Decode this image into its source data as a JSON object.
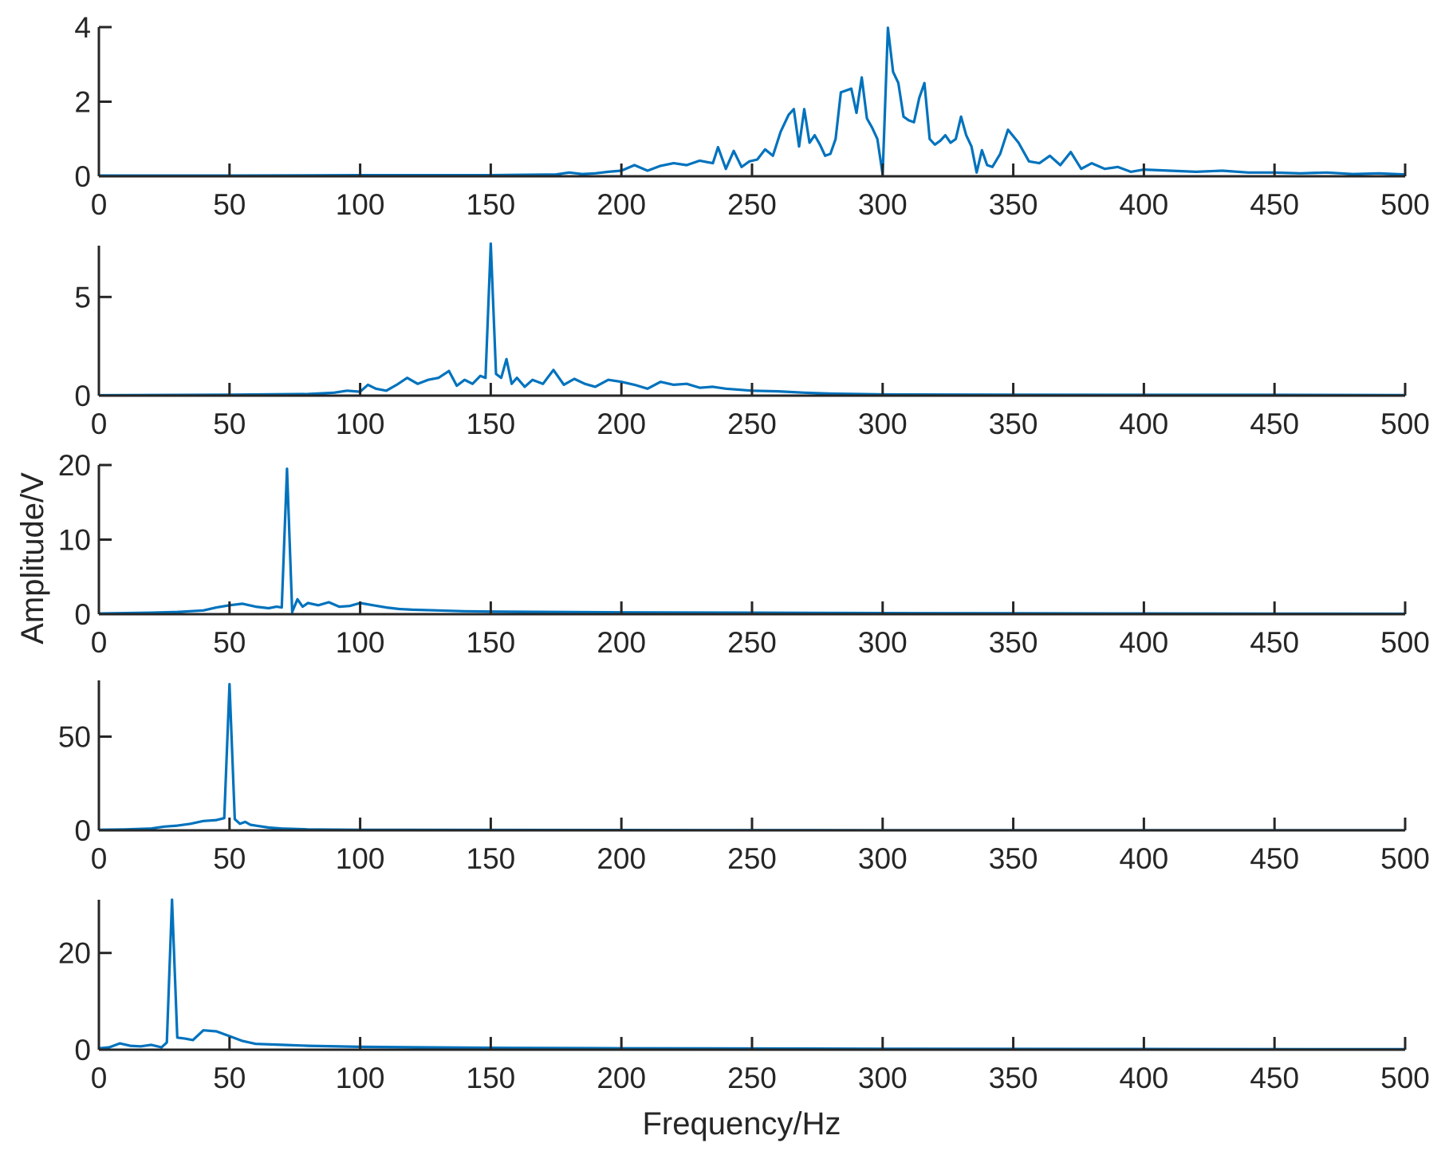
{
  "figure": {
    "xlabel": "Frequency/Hz",
    "ylabel": "Amplitude/V",
    "line_color": "#0072BD",
    "axis_color": "#262626"
  },
  "chart_data": [
    {
      "type": "line",
      "panel": 1,
      "xlim": [
        0,
        500
      ],
      "ylim": [
        0,
        4
      ],
      "xticks": [
        0,
        50,
        100,
        150,
        200,
        250,
        300,
        350,
        400,
        450,
        500
      ],
      "yticks": [
        0,
        2,
        4
      ],
      "x": [
        0,
        50,
        100,
        150,
        175,
        180,
        185,
        190,
        195,
        200,
        205,
        210,
        215,
        220,
        225,
        230,
        235,
        237,
        240,
        243,
        246,
        249,
        252,
        255,
        258,
        261,
        264,
        266,
        268,
        270,
        272,
        274,
        276,
        278,
        280,
        282,
        284,
        286,
        288,
        290,
        292,
        294,
        296,
        298,
        300,
        302,
        304,
        306,
        308,
        310,
        312,
        314,
        316,
        318,
        320,
        322,
        324,
        326,
        328,
        330,
        332,
        334,
        336,
        338,
        340,
        342,
        345,
        348,
        352,
        356,
        360,
        364,
        368,
        372,
        376,
        380,
        385,
        390,
        395,
        400,
        410,
        420,
        430,
        440,
        450,
        460,
        470,
        480,
        490,
        500
      ],
      "y": [
        0.02,
        0.02,
        0.03,
        0.03,
        0.05,
        0.1,
        0.06,
        0.08,
        0.12,
        0.15,
        0.3,
        0.15,
        0.28,
        0.35,
        0.3,
        0.42,
        0.35,
        0.78,
        0.2,
        0.68,
        0.25,
        0.4,
        0.45,
        0.72,
        0.55,
        1.2,
        1.65,
        1.8,
        0.8,
        1.8,
        0.9,
        1.1,
        0.85,
        0.55,
        0.6,
        1.0,
        2.25,
        2.3,
        2.35,
        1.7,
        2.65,
        1.55,
        1.3,
        1.0,
        0.05,
        3.98,
        2.8,
        2.5,
        1.6,
        1.5,
        1.45,
        2.1,
        2.5,
        1.0,
        0.85,
        0.95,
        1.1,
        0.9,
        1.0,
        1.6,
        1.1,
        0.8,
        0.1,
        0.7,
        0.3,
        0.25,
        0.6,
        1.25,
        0.9,
        0.4,
        0.35,
        0.55,
        0.3,
        0.65,
        0.2,
        0.35,
        0.2,
        0.25,
        0.12,
        0.18,
        0.15,
        0.12,
        0.15,
        0.1,
        0.1,
        0.08,
        0.1,
        0.06,
        0.08,
        0.05
      ]
    },
    {
      "type": "line",
      "panel": 2,
      "xlim": [
        0,
        500
      ],
      "ylim": [
        0,
        7.6
      ],
      "xticks": [
        0,
        50,
        100,
        150,
        200,
        250,
        300,
        350,
        400,
        450,
        500
      ],
      "yticks": [
        0,
        5
      ],
      "x": [
        0,
        50,
        80,
        90,
        95,
        100,
        103,
        106,
        110,
        114,
        118,
        122,
        126,
        130,
        134,
        137,
        140,
        143,
        146,
        148,
        150,
        152,
        154,
        156,
        158,
        160,
        163,
        166,
        170,
        174,
        178,
        182,
        186,
        190,
        195,
        200,
        205,
        210,
        215,
        220,
        225,
        230,
        235,
        240,
        250,
        260,
        270,
        280,
        300,
        350,
        400,
        450,
        500
      ],
      "y": [
        0.02,
        0.05,
        0.08,
        0.15,
        0.25,
        0.2,
        0.55,
        0.35,
        0.25,
        0.55,
        0.9,
        0.6,
        0.8,
        0.9,
        1.25,
        0.5,
        0.8,
        0.6,
        1.0,
        0.9,
        7.7,
        1.1,
        0.9,
        1.85,
        0.6,
        0.9,
        0.45,
        0.8,
        0.6,
        1.3,
        0.55,
        0.85,
        0.6,
        0.45,
        0.8,
        0.7,
        0.55,
        0.35,
        0.7,
        0.55,
        0.6,
        0.4,
        0.45,
        0.35,
        0.25,
        0.22,
        0.15,
        0.1,
        0.06,
        0.05,
        0.04,
        0.04,
        0.03
      ]
    },
    {
      "type": "line",
      "panel": 3,
      "xlim": [
        0,
        500
      ],
      "ylim": [
        0,
        20
      ],
      "xticks": [
        0,
        50,
        100,
        150,
        200,
        250,
        300,
        350,
        400,
        450,
        500
      ],
      "yticks": [
        0,
        10,
        20
      ],
      "x": [
        0,
        20,
        30,
        40,
        45,
        50,
        55,
        60,
        65,
        68,
        70,
        72,
        74,
        76,
        78,
        80,
        84,
        88,
        92,
        96,
        100,
        105,
        110,
        115,
        120,
        130,
        140,
        150,
        200,
        250,
        300,
        350,
        400,
        450,
        500
      ],
      "y": [
        0.1,
        0.2,
        0.3,
        0.5,
        0.9,
        1.2,
        1.4,
        1.0,
        0.8,
        1.0,
        0.9,
        19.5,
        0.3,
        2.0,
        1.0,
        1.5,
        1.2,
        1.6,
        1.0,
        1.1,
        1.5,
        1.2,
        0.9,
        0.7,
        0.6,
        0.5,
        0.4,
        0.35,
        0.25,
        0.2,
        0.15,
        0.12,
        0.1,
        0.08,
        0.05
      ]
    },
    {
      "type": "line",
      "panel": 4,
      "xlim": [
        0,
        500
      ],
      "ylim": [
        0,
        80
      ],
      "xticks": [
        0,
        50,
        100,
        150,
        200,
        250,
        300,
        350,
        400,
        450,
        500
      ],
      "yticks": [
        0,
        50
      ],
      "x": [
        0,
        10,
        20,
        25,
        30,
        35,
        40,
        45,
        48,
        50,
        52,
        54,
        56,
        58,
        60,
        65,
        70,
        80,
        100,
        150,
        200,
        300,
        400,
        500
      ],
      "y": [
        0.3,
        0.5,
        1.0,
        2.0,
        2.5,
        3.5,
        5.0,
        5.5,
        6.5,
        78.0,
        6.0,
        3.5,
        4.5,
        3.0,
        2.5,
        1.5,
        1.0,
        0.5,
        0.3,
        0.2,
        0.15,
        0.1,
        0.08,
        0.05
      ]
    },
    {
      "type": "line",
      "panel": 5,
      "xlim": [
        0,
        500
      ],
      "ylim": [
        0,
        31
      ],
      "xticks": [
        0,
        50,
        100,
        150,
        200,
        250,
        300,
        350,
        400,
        450,
        500
      ],
      "yticks": [
        0,
        20
      ],
      "x": [
        0,
        4,
        8,
        12,
        16,
        20,
        24,
        26,
        28,
        30,
        33,
        36,
        40,
        45,
        50,
        55,
        60,
        70,
        80,
        100,
        150,
        200,
        300,
        400,
        500
      ],
      "y": [
        0.3,
        0.5,
        1.3,
        0.8,
        0.7,
        1.0,
        0.5,
        1.5,
        31.0,
        2.5,
        2.3,
        2.0,
        4.0,
        3.8,
        2.8,
        1.8,
        1.2,
        1.0,
        0.8,
        0.6,
        0.4,
        0.3,
        0.2,
        0.15,
        0.1
      ]
    }
  ]
}
